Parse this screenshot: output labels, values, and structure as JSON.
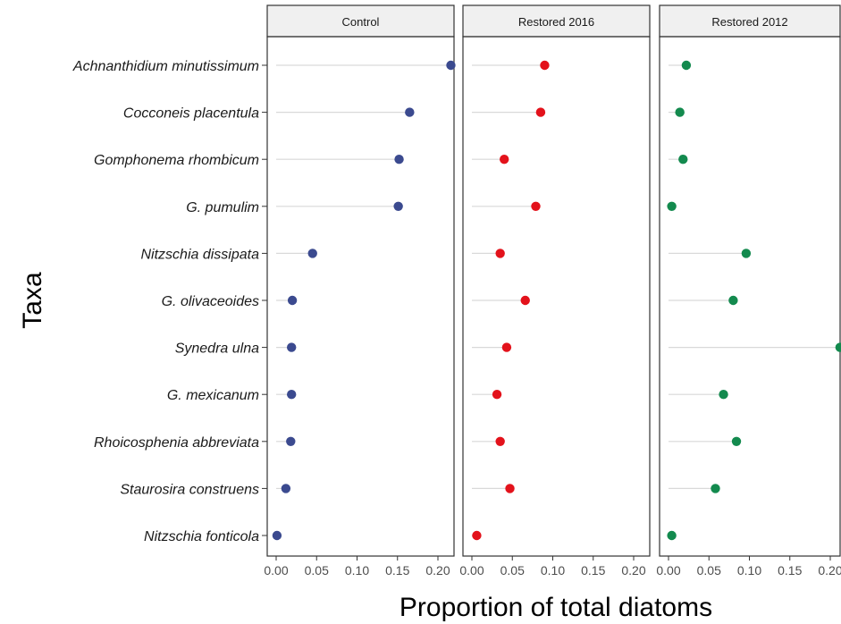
{
  "chart_data": {
    "type": "scatter",
    "subtype": "lollipop-faceted",
    "xlabel": "Proportion of total diatoms",
    "ylabel": "Taxa",
    "xlim": [
      0,
      0.22
    ],
    "xticks": [
      "0.00",
      "0.05",
      "0.10",
      "0.15",
      "0.20"
    ],
    "grid": false,
    "categories": [
      "Achnanthidium minutissimum",
      "Cocconeis placentula",
      "Gomphonema rhombicum",
      "G. pumulim",
      "Nitzschia dissipata",
      "G. olivaceoides",
      "Synedra ulna",
      "G. mexicanum",
      "Rhoicosphenia abbreviata",
      "Staurosira construens",
      "Nitzschia fonticola"
    ],
    "series": [
      {
        "name": "Control",
        "color": "#3b4a8f",
        "values": [
          0.216,
          0.165,
          0.152,
          0.151,
          0.045,
          0.02,
          0.019,
          0.019,
          0.018,
          0.012,
          0.001
        ]
      },
      {
        "name": "Restored 2016",
        "color": "#e3121b",
        "values": [
          0.09,
          0.085,
          0.04,
          0.079,
          0.035,
          0.066,
          0.043,
          0.031,
          0.035,
          0.047,
          0.006
        ]
      },
      {
        "name": "Restored 2012",
        "color": "#138a4e",
        "values": [
          0.022,
          0.014,
          0.018,
          0.004,
          0.096,
          0.08,
          0.212,
          0.068,
          0.084,
          0.058,
          0.004
        ]
      }
    ]
  }
}
